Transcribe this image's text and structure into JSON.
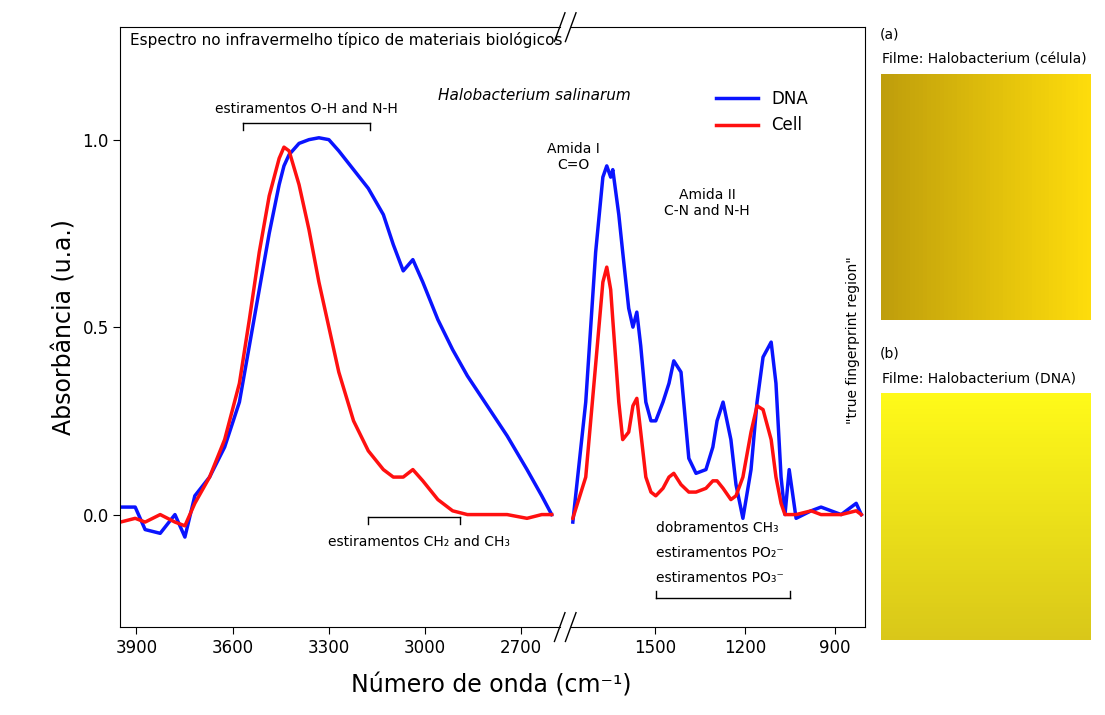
{
  "chart_data": {
    "type": "line",
    "title": "Espectro no infravermelho típico de materiais biológicos",
    "subtitle": "Halobacterium salinarum",
    "x_label": "Número de onda (cm⁻¹)",
    "y_label": "Absorbância (u.a.)",
    "xlim": [
      [
        3950,
        2580
      ],
      [
        1780,
        800
      ]
    ],
    "xticks": [
      [
        3900,
        3600,
        3300,
        3000,
        2700
      ],
      [
        1500,
        1200,
        900
      ]
    ],
    "ylim": [
      -0.3,
      1.3
    ],
    "yticks": [
      {
        "value": 0.0,
        "label": "0.0"
      },
      {
        "value": 0.5,
        "label": "0.5"
      },
      {
        "value": 1.0,
        "label": "1.0"
      }
    ],
    "legend": "upper right",
    "x": [
      3950,
      3904,
      3873,
      3826,
      3780,
      3749,
      3718,
      3672,
      3625,
      3579,
      3548,
      3517,
      3486,
      3455,
      3440,
      3424,
      3393,
      3362,
      3331,
      3300,
      3269,
      3223,
      3177,
      3130,
      3099,
      3068,
      3038,
      3007,
      2960,
      2914,
      2868,
      2806,
      2744,
      2682,
      2636,
      2605,
      2200,
      1773,
      1730,
      1697,
      1673,
      1660,
      1647,
      1640,
      1620,
      1607,
      1587,
      1573,
      1560,
      1547,
      1530,
      1513,
      1497,
      1473,
      1453,
      1437,
      1413,
      1387,
      1363,
      1330,
      1307,
      1293,
      1273,
      1247,
      1230,
      1207,
      1180,
      1160,
      1140,
      1113,
      1097,
      1080,
      1067,
      1053,
      1030,
      980,
      947,
      880,
      830,
      813
    ],
    "series": [
      {
        "name": "DNA",
        "color": "#0a14ff",
        "values": [
          0.02,
          0.02,
          -0.04,
          -0.05,
          0.0,
          -0.06,
          0.05,
          0.1,
          0.18,
          0.3,
          0.45,
          0.6,
          0.75,
          0.88,
          0.93,
          0.96,
          0.99,
          1.0,
          1.005,
          1.0,
          0.97,
          0.92,
          0.87,
          0.8,
          0.72,
          0.65,
          0.68,
          0.62,
          0.52,
          0.44,
          0.37,
          0.29,
          0.21,
          0.12,
          0.05,
          0.0,
          null,
          -0.02,
          0.3,
          0.7,
          0.9,
          0.93,
          0.9,
          0.92,
          0.8,
          0.7,
          0.55,
          0.5,
          0.54,
          0.45,
          0.3,
          0.25,
          0.25,
          0.3,
          0.35,
          0.41,
          0.38,
          0.15,
          0.11,
          0.12,
          0.18,
          0.25,
          0.3,
          0.2,
          0.08,
          -0.01,
          0.12,
          0.3,
          0.42,
          0.46,
          0.35,
          0.1,
          0.0,
          0.12,
          -0.01,
          0.01,
          0.02,
          0.0,
          0.03,
          0.0
        ]
      },
      {
        "name": "Cell",
        "color": "#ff1010",
        "values": [
          -0.02,
          -0.01,
          -0.02,
          0.0,
          -0.02,
          -0.03,
          0.03,
          0.1,
          0.2,
          0.35,
          0.52,
          0.7,
          0.85,
          0.95,
          0.98,
          0.97,
          0.88,
          0.76,
          0.62,
          0.5,
          0.38,
          0.25,
          0.17,
          0.12,
          0.1,
          0.1,
          0.12,
          0.09,
          0.04,
          0.01,
          0.0,
          0.0,
          0.0,
          -0.01,
          0.0,
          0.0,
          null,
          -0.01,
          0.1,
          0.4,
          0.62,
          0.66,
          0.6,
          0.52,
          0.3,
          0.2,
          0.22,
          0.29,
          0.31,
          0.22,
          0.1,
          0.06,
          0.05,
          0.07,
          0.1,
          0.11,
          0.08,
          0.06,
          0.06,
          0.07,
          0.09,
          0.09,
          0.07,
          0.04,
          0.05,
          0.1,
          0.22,
          0.29,
          0.28,
          0.2,
          0.1,
          0.03,
          0.0,
          0.0,
          0.0,
          0.01,
          0.0,
          0.0,
          0.01,
          0.0
        ]
      }
    ],
    "annotations": {
      "oh_nh": "estiramentos O-H and N-H",
      "ch": "estiramentos CH₂ and CH₃",
      "amida1": "Amida I\nC=O",
      "amida2": "Amida II\nC-N and N-H",
      "fingerprint": "\"true fingerprint region\"",
      "bands": [
        "dobramentos CH₃",
        "estiramentos PO₂⁻",
        "estiramentos PO₃⁻"
      ]
    },
    "insets": [
      {
        "label": "(a)",
        "caption": "Filme: Halobacterium (célula)"
      },
      {
        "label": "(b)",
        "caption": "Filme: Halobacterium (DNA)"
      }
    ]
  }
}
